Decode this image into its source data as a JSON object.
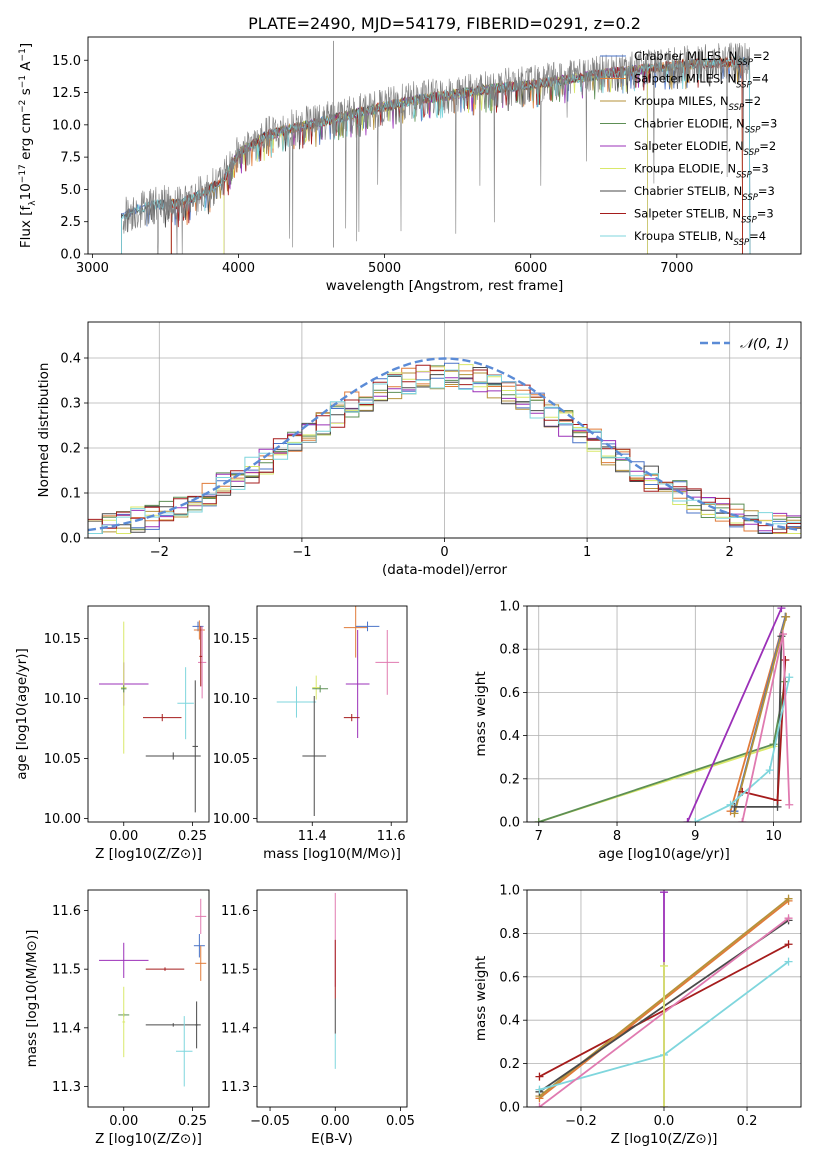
{
  "title": "PLATE=2490, MJD=54179, FIBERID=0291, z=0.2",
  "colors": {
    "Chabrier MILES": "#4a73c7",
    "Salpeter MILES": "#e07b39",
    "Kroupa MILES": "#b5923a",
    "Chabrier ELODIE": "#5d8f55",
    "Salpeter ELODIE": "#9b30b8",
    "Kroupa ELODIE": "#d9e86a",
    "Chabrier STELIB": "#4a4a4a",
    "Salpeter STELIB": "#a51c1c",
    "Kroupa STELIB": "#7fd6dd",
    "extra_pink": "#e07ab0",
    "data_gray": "#808080",
    "gaussian": "#5b8bd6"
  },
  "chart_data": [
    {
      "type": "line",
      "panel": "spectrum",
      "title": "PLATE=2490, MJD=54179, FIBERID=0291, z=0.2",
      "xlabel": "wavelength [Angstrom, rest frame]",
      "ylabel": "Flux [f_λ10^-17 erg cm^-2 s^-1 A^-1]",
      "xlim": [
        2970,
        7850
      ],
      "ylim": [
        0,
        16.8
      ],
      "xticks": [
        "3000",
        "4000",
        "5000",
        "6000",
        "7000"
      ],
      "yticks": [
        "0.0",
        "2.5",
        "5.0",
        "7.5",
        "10.0",
        "12.5",
        "15.0"
      ],
      "legend_position": "top-right",
      "legend": [
        "Chabrier MILES, N_SSP=2",
        "Salpeter MILES, N_SSP=4",
        "Kroupa MILES, N_SSP=2",
        "Chabrier ELODIE, N_SSP=3",
        "Salpeter ELODIE, N_SSP=2",
        "Kroupa ELODIE, N_SSP=3",
        "Chabrier STELIB, N_SSP=3",
        "Salpeter STELIB, N_SSP=3",
        "Kroupa STELIB, N_SSP=4"
      ],
      "continuum": {
        "x": [
          3210,
          3260,
          3400,
          3600,
          3700,
          3800,
          3900,
          4000,
          4200,
          4400,
          4700,
          5000,
          5200,
          5500,
          5800,
          6000,
          6300,
          6600,
          7000,
          7400,
          7500
        ],
        "y": [
          3.0,
          3.2,
          3.8,
          3.9,
          4.4,
          5.0,
          5.8,
          7.8,
          9.2,
          9.8,
          10.6,
          11.4,
          11.9,
          12.4,
          12.9,
          13.1,
          13.6,
          14.1,
          14.6,
          14.9,
          14.9
        ]
      },
      "model_ranges": [
        [
          3200,
          7500
        ],
        [
          3540,
          7450
        ],
        [
          3540,
          7450
        ],
        [
          3900,
          6800
        ],
        [
          3900,
          6800
        ],
        [
          3900,
          6800
        ],
        [
          3200,
          7500
        ],
        [
          3540,
          7450
        ],
        [
          3200,
          7500
        ]
      ]
    },
    {
      "type": "step",
      "panel": "residuals",
      "xlabel": "(data-model)/error",
      "ylabel": "Normed distribution",
      "xlim": [
        -2.5,
        2.5
      ],
      "ylim": [
        0,
        0.48
      ],
      "xticks": [
        "−2",
        "−1",
        "0",
        "1",
        "2"
      ],
      "yticks": [
        "0.0",
        "0.1",
        "0.2",
        "0.3",
        "0.4"
      ],
      "legend_position": "top-right",
      "gaussian_label": "𝒩(0, 1)",
      "grid": true
    },
    {
      "type": "errorbar",
      "panel": "age-vs-Z",
      "xlabel": "Z [log10(Z/Z⊙)]",
      "ylabel": "age [log10(age/yr)]",
      "xlim": [
        -0.13,
        0.31
      ],
      "ylim": [
        9.997,
        10.177
      ],
      "xticks": [
        "0.00",
        "0.25"
      ],
      "yticks": [
        "10.00",
        "10.05",
        "10.10",
        "10.15"
      ],
      "points": [
        {
          "s": "Salpeter ELODIE",
          "x": 0.0,
          "y": 10.112,
          "xe": 0.09,
          "ye": 0.018
        },
        {
          "s": "Kroupa ELODIE",
          "x": 0.0,
          "y": 10.109,
          "xe": 0.01,
          "ye": 0.055
        },
        {
          "s": "Chabrier ELODIE",
          "x": 0.0,
          "y": 10.108,
          "xe": 0.01,
          "ye": 0.003
        },
        {
          "s": "Salpeter STELIB",
          "x": 0.14,
          "y": 10.084,
          "xe": 0.07,
          "ye": 0.003
        },
        {
          "s": "Chabrier STELIB",
          "x": 0.18,
          "y": 10.052,
          "xe": 0.1,
          "ye": 0.003
        },
        {
          "s": "Kroupa STELIB",
          "x": 0.225,
          "y": 10.096,
          "xe": 0.03,
          "ye": 0.03
        },
        {
          "s": "Chabrier STELIB",
          "x": 0.26,
          "y": 10.06,
          "xe": 0.01,
          "ye": 0.055
        },
        {
          "s": "Chabrier MILES",
          "x": 0.27,
          "y": 10.16,
          "xe": 0.02,
          "ye": 0.004
        },
        {
          "s": "Salpeter MILES",
          "x": 0.275,
          "y": 10.157,
          "xe": 0.02,
          "ye": 0.008
        },
        {
          "s": "extra_pink",
          "x": 0.285,
          "y": 10.13,
          "xe": 0.015,
          "ye": 0.03
        },
        {
          "s": "Salpeter STELIB",
          "x": 0.28,
          "y": 10.135,
          "xe": 0.005,
          "ye": 0.025
        }
      ]
    },
    {
      "type": "errorbar",
      "panel": "age-vs-mass",
      "xlabel": "mass [log10(M/M⊙)]",
      "xlim": [
        11.26,
        11.64
      ],
      "ylim": [
        9.997,
        10.177
      ],
      "xticks": [
        "11.4",
        "11.6"
      ],
      "yticks": [
        "10.00",
        "10.05",
        "10.10",
        "10.15"
      ],
      "points": [
        {
          "s": "Kroupa STELIB",
          "x": 11.36,
          "y": 10.097,
          "xe": 0.05,
          "ye": 0.013
        },
        {
          "s": "Kroupa ELODIE",
          "x": 11.41,
          "y": 10.109,
          "xe": 0.01,
          "ye": 0.01
        },
        {
          "s": "Chabrier ELODIE",
          "x": 11.42,
          "y": 10.108,
          "xe": 0.02,
          "ye": 0.003
        },
        {
          "s": "Chabrier STELIB",
          "x": 11.405,
          "y": 10.052,
          "xe": 0.03,
          "ye": 0.05
        },
        {
          "s": "Salpeter ELODIE",
          "x": 11.515,
          "y": 10.112,
          "xe": 0.03,
          "ye": 0.045
        },
        {
          "s": "Salpeter STELIB",
          "x": 11.5,
          "y": 10.084,
          "xe": 0.02,
          "ye": 0.003
        },
        {
          "s": "Salpeter MILES",
          "x": 11.51,
          "y": 10.159,
          "xe": 0.03,
          "ye": 0.025
        },
        {
          "s": "Chabrier MILES",
          "x": 11.54,
          "y": 10.16,
          "xe": 0.03,
          "ye": 0.004
        },
        {
          "s": "extra_pink",
          "x": 11.59,
          "y": 10.13,
          "xe": 0.03,
          "ye": 0.027
        }
      ]
    },
    {
      "type": "line",
      "panel": "mass-weight-vs-age",
      "xlabel": "age [log10(age/yr)]",
      "ylabel": "mass weight",
      "xlim": [
        6.85,
        10.35
      ],
      "ylim": [
        0,
        1.0
      ],
      "xticks": [
        "7",
        "8",
        "9",
        "10"
      ],
      "yticks": [
        "0.0",
        "0.2",
        "0.4",
        "0.6",
        "0.8",
        "1.0"
      ],
      "grid": true,
      "series": [
        {
          "s": "Kroupa ELODIE",
          "x": [
            7.0,
            10.0,
            10.15
          ],
          "y": [
            0.0,
            0.35,
            0.65
          ]
        },
        {
          "s": "Chabrier ELODIE",
          "x": [
            7.0,
            10.0,
            10.15
          ],
          "y": [
            0.0,
            0.36,
            0.65
          ]
        },
        {
          "s": "Salpeter ELODIE",
          "x": [
            8.9,
            10.1
          ],
          "y": [
            0.0,
            0.99
          ]
        },
        {
          "s": "Salpeter MILES",
          "x": [
            9.45,
            10.15
          ],
          "y": [
            0.05,
            0.95
          ]
        },
        {
          "s": "Chabrier MILES",
          "x": [
            9.5,
            10.15
          ],
          "y": [
            0.05,
            0.95
          ]
        },
        {
          "s": "Kroupa MILES",
          "x": [
            9.5,
            10.16
          ],
          "y": [
            0.04,
            0.95
          ]
        },
        {
          "s": "Chabrier STELIB",
          "x": [
            9.5,
            10.05,
            10.1
          ],
          "y": [
            0.07,
            0.07,
            0.86
          ]
        },
        {
          "s": "Salpeter STELIB",
          "x": [
            9.6,
            10.05,
            10.15
          ],
          "y": [
            0.14,
            0.1,
            0.75
          ]
        },
        {
          "s": "Kroupa STELIB",
          "x": [
            9.0,
            9.45,
            9.95,
            10.2
          ],
          "y": [
            0.0,
            0.08,
            0.24,
            0.67
          ]
        },
        {
          "s": "extra_pink",
          "x": [
            9.6,
            10.12,
            10.2
          ],
          "y": [
            0.0,
            0.87,
            0.08
          ]
        }
      ]
    },
    {
      "type": "errorbar",
      "panel": "mass-vs-Z",
      "xlabel": "Z [log10(Z/Z⊙)]",
      "ylabel": "mass [log10(M/M⊙)]",
      "xlim": [
        -0.13,
        0.31
      ],
      "ylim": [
        11.265,
        11.635
      ],
      "xticks": [
        "0.00",
        "0.25"
      ],
      "yticks": [
        "11.3",
        "11.4",
        "11.5",
        "11.6"
      ],
      "points": [
        {
          "s": "Salpeter ELODIE",
          "x": 0.0,
          "y": 11.515,
          "xe": 0.09,
          "ye": 0.03
        },
        {
          "s": "Chabrier ELODIE",
          "x": 0.0,
          "y": 11.422,
          "xe": 0.02,
          "ye": 0.003
        },
        {
          "s": "Kroupa ELODIE",
          "x": 0.0,
          "y": 11.41,
          "xe": 0.005,
          "ye": 0.06
        },
        {
          "s": "Salpeter STELIB",
          "x": 0.15,
          "y": 11.5,
          "xe": 0.07,
          "ye": 0.003
        },
        {
          "s": "Chabrier STELIB",
          "x": 0.18,
          "y": 11.405,
          "xe": 0.1,
          "ye": 0.003
        },
        {
          "s": "Kroupa STELIB",
          "x": 0.22,
          "y": 11.36,
          "xe": 0.03,
          "ye": 0.06
        },
        {
          "s": "Chabrier STELIB",
          "x": 0.265,
          "y": 11.405,
          "xe": 0.005,
          "ye": 0.04
        },
        {
          "s": "Chabrier MILES",
          "x": 0.275,
          "y": 11.54,
          "xe": 0.02,
          "ye": 0.02
        },
        {
          "s": "Salpeter MILES",
          "x": 0.28,
          "y": 11.51,
          "xe": 0.02,
          "ye": 0.03
        },
        {
          "s": "extra_pink",
          "x": 0.28,
          "y": 11.59,
          "xe": 0.02,
          "ye": 0.03
        }
      ]
    },
    {
      "type": "errorbar",
      "panel": "mass-vs-EBV",
      "xlabel": "E(B-V)",
      "xlim": [
        -0.06,
        0.055
      ],
      "ylim": [
        11.265,
        11.635
      ],
      "xticks": [
        "−0.05",
        "0.00",
        "0.05"
      ],
      "yticks": [
        "11.3",
        "11.4",
        "11.5",
        "11.6"
      ],
      "points": [
        {
          "s": "extra_pink",
          "x": 0.0,
          "y": 11.55,
          "xe": 0.0,
          "ye": 0.08
        },
        {
          "s": "Salpeter STELIB",
          "x": 0.0,
          "y": 11.5,
          "xe": 0.0,
          "ye": 0.05
        },
        {
          "s": "Chabrier STELIB",
          "x": 0.0,
          "y": 11.42,
          "xe": 0.0,
          "ye": 0.03
        },
        {
          "s": "Kroupa STELIB",
          "x": 0.0,
          "y": 11.36,
          "xe": 0.0,
          "ye": 0.03
        }
      ]
    },
    {
      "type": "line",
      "panel": "mass-weight-vs-Z",
      "xlabel": "Z [log10(Z/Z⊙)]",
      "ylabel": "mass weight",
      "xlim": [
        -0.33,
        0.33
      ],
      "ylim": [
        0,
        1.0
      ],
      "xticks": [
        "−0.2",
        "0.0",
        "0.2"
      ],
      "yticks": [
        "0.0",
        "0.2",
        "0.4",
        "0.6",
        "0.8",
        "1.0"
      ],
      "grid": true,
      "series": [
        {
          "s": "Salpeter STELIB",
          "x": [
            -0.3,
            0.3
          ],
          "y": [
            0.14,
            0.75
          ]
        },
        {
          "s": "Salpeter MILES",
          "x": [
            -0.3,
            0.3
          ],
          "y": [
            0.04,
            0.95
          ]
        },
        {
          "s": "Kroupa MILES",
          "x": [
            -0.3,
            0.3
          ],
          "y": [
            0.05,
            0.96
          ]
        },
        {
          "s": "Chabrier STELIB",
          "x": [
            -0.3,
            0.3
          ],
          "y": [
            0.07,
            0.86
          ]
        },
        {
          "s": "Kroupa STELIB",
          "x": [
            -0.3,
            0.0,
            0.3
          ],
          "y": [
            0.08,
            0.24,
            0.67
          ]
        },
        {
          "s": "extra_pink",
          "x": [
            -0.3,
            0.3
          ],
          "y": [
            0.0,
            0.87
          ]
        },
        {
          "s": "Salpeter ELODIE",
          "x": [
            0.0,
            0.0
          ],
          "y": [
            0.0,
            0.99
          ]
        },
        {
          "s": "Kroupa ELODIE",
          "x": [
            0.0,
            0.0
          ],
          "y": [
            0.0,
            0.65
          ]
        }
      ]
    }
  ]
}
